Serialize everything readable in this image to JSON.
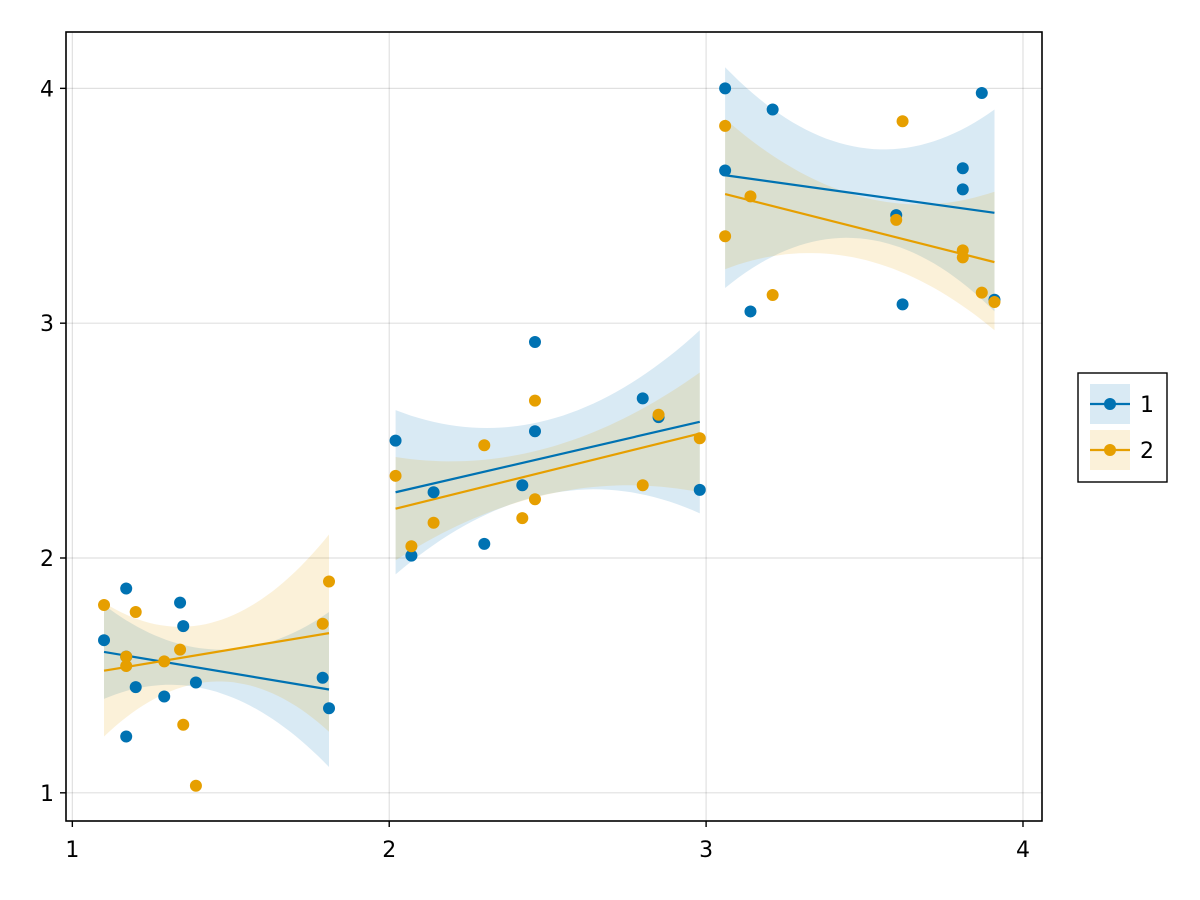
{
  "chart_data": {
    "type": "scatter",
    "title": "",
    "xlabel": "",
    "ylabel": "",
    "xlim": [
      0.98,
      4.06
    ],
    "ylim": [
      0.88,
      4.24
    ],
    "xticks": [
      1,
      2,
      3,
      4
    ],
    "yticks": [
      1,
      2,
      3,
      4
    ],
    "grid": true,
    "legend_position": "right",
    "series": [
      {
        "name": "1",
        "color": "#0072B2",
        "band_color": "#0072B2",
        "points": [
          [
            1.1,
            1.65
          ],
          [
            1.17,
            1.87
          ],
          [
            1.17,
            1.58
          ],
          [
            1.17,
            1.24
          ],
          [
            1.2,
            1.45
          ],
          [
            1.29,
            1.41
          ],
          [
            1.34,
            1.81
          ],
          [
            1.35,
            1.71
          ],
          [
            1.39,
            1.47
          ],
          [
            1.79,
            1.49
          ],
          [
            1.81,
            1.36
          ],
          [
            2.02,
            2.5
          ],
          [
            2.07,
            2.01
          ],
          [
            2.14,
            2.28
          ],
          [
            2.3,
            2.06
          ],
          [
            2.42,
            2.31
          ],
          [
            2.46,
            2.92
          ],
          [
            2.46,
            2.54
          ],
          [
            2.8,
            2.68
          ],
          [
            2.85,
            2.6
          ],
          [
            2.98,
            2.29
          ],
          [
            3.06,
            4.0
          ],
          [
            3.06,
            3.65
          ],
          [
            3.14,
            3.05
          ],
          [
            3.21,
            3.91
          ],
          [
            3.6,
            3.46
          ],
          [
            3.62,
            3.08
          ],
          [
            3.81,
            3.66
          ],
          [
            3.81,
            3.57
          ],
          [
            3.87,
            3.98
          ],
          [
            3.91,
            3.1
          ]
        ],
        "fits": [
          {
            "x": [
              1.1,
              1.81
            ],
            "y": [
              1.6,
              1.44
            ],
            "band_lower": [
              1.4,
              1.11
            ],
            "band_upper": [
              1.8,
              1.77
            ]
          },
          {
            "x": [
              2.02,
              2.98
            ],
            "y": [
              2.28,
              2.58
            ],
            "band_lower": [
              1.93,
              2.19
            ],
            "band_upper": [
              2.63,
              2.97
            ]
          },
          {
            "x": [
              3.06,
              3.91
            ],
            "y": [
              3.63,
              3.47
            ],
            "band_lower": [
              3.15,
              3.05
            ],
            "band_upper": [
              4.09,
              3.91
            ]
          }
        ]
      },
      {
        "name": "2",
        "color": "#E69F00",
        "band_color": "#E69F00",
        "points": [
          [
            1.1,
            1.8
          ],
          [
            1.17,
            1.58
          ],
          [
            1.17,
            1.54
          ],
          [
            1.2,
            1.77
          ],
          [
            1.29,
            1.56
          ],
          [
            1.34,
            1.61
          ],
          [
            1.35,
            1.29
          ],
          [
            1.39,
            1.03
          ],
          [
            1.79,
            1.72
          ],
          [
            1.81,
            1.9
          ],
          [
            2.02,
            2.35
          ],
          [
            2.07,
            2.05
          ],
          [
            2.14,
            2.15
          ],
          [
            2.3,
            2.48
          ],
          [
            2.42,
            2.17
          ],
          [
            2.46,
            2.67
          ],
          [
            2.46,
            2.25
          ],
          [
            2.8,
            2.31
          ],
          [
            2.85,
            2.61
          ],
          [
            2.98,
            2.51
          ],
          [
            3.06,
            3.84
          ],
          [
            3.06,
            3.37
          ],
          [
            3.14,
            3.54
          ],
          [
            3.21,
            3.12
          ],
          [
            3.6,
            3.44
          ],
          [
            3.62,
            3.86
          ],
          [
            3.81,
            3.31
          ],
          [
            3.81,
            3.28
          ],
          [
            3.87,
            3.13
          ],
          [
            3.91,
            3.09
          ]
        ],
        "fits": [
          {
            "x": [
              1.1,
              1.81
            ],
            "y": [
              1.52,
              1.68
            ],
            "band_lower": [
              1.24,
              1.26
            ],
            "band_upper": [
              1.81,
              2.1
            ]
          },
          {
            "x": [
              2.02,
              2.98
            ],
            "y": [
              2.21,
              2.53
            ],
            "band_lower": [
              1.99,
              2.28
            ],
            "band_upper": [
              2.43,
              2.79
            ]
          },
          {
            "x": [
              3.06,
              3.91
            ],
            "y": [
              3.55,
              3.26
            ],
            "band_lower": [
              3.23,
              2.97
            ],
            "band_upper": [
              3.87,
              3.56
            ]
          }
        ]
      }
    ]
  }
}
